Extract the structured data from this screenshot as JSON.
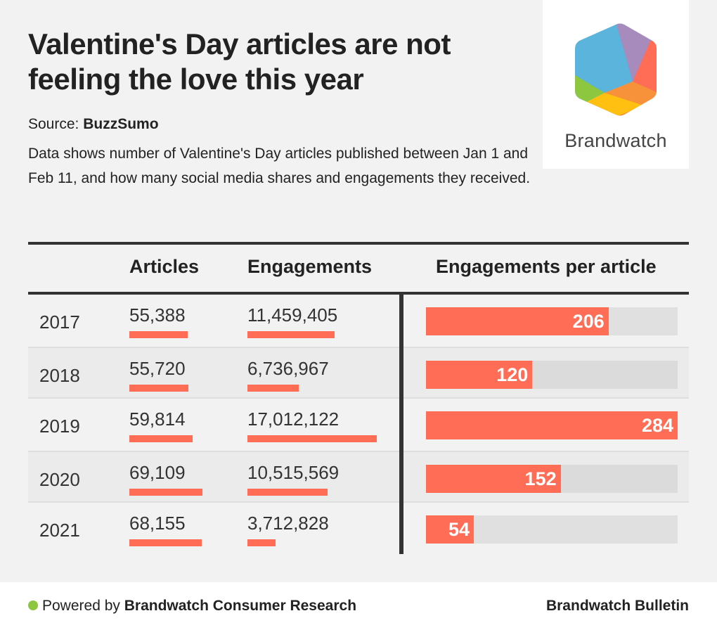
{
  "header": {
    "title": "Valentine's Day articles are not feeling the love this year",
    "source_label": "Source:",
    "source_name": "BuzzSumo",
    "description": "Data shows number of Valentine's Day articles published between Jan 1 and Feb 11, and how many social media shares and engagements they received."
  },
  "logo": {
    "name": "brandwatch-logo",
    "wordmark": "Brandwatch",
    "colors": [
      "#5ab4dc",
      "#a78bbd",
      "#ff6d56",
      "#f7923a",
      "#ffc012",
      "#8dc63f"
    ]
  },
  "colors": {
    "accent": "#ff6d56",
    "track": "#e0e0e0",
    "rule": "#333333",
    "background": "#f2f2f2"
  },
  "chart_data": {
    "type": "table",
    "title": "Valentine's Day articles are not feeling the love this year",
    "columns": [
      "",
      "Articles",
      "Engagements",
      "Engagements per article"
    ],
    "rows": [
      {
        "year": "2017",
        "articles": 55388,
        "articles_label": "55,388",
        "engagements": 11459405,
        "engagements_label": "11,459,405",
        "per_article": 206
      },
      {
        "year": "2018",
        "articles": 55720,
        "articles_label": "55,720",
        "engagements": 6736967,
        "engagements_label": "6,736,967",
        "per_article": 120
      },
      {
        "year": "2019",
        "articles": 59814,
        "articles_label": "59,814",
        "engagements": 17012122,
        "engagements_label": "17,012,122",
        "per_article": 284
      },
      {
        "year": "2020",
        "articles": 69109,
        "articles_label": "69,109",
        "engagements": 10515569,
        "engagements_label": "10,515,569",
        "per_article": 152
      },
      {
        "year": "2021",
        "articles": 68155,
        "articles_label": "68,155",
        "engagements": 3712828,
        "engagements_label": "3,712,828",
        "per_article": 54
      }
    ],
    "per_article_max": 284
  },
  "footer": {
    "powered_prefix": "Powered by",
    "powered_name": "Brandwatch Consumer Research",
    "publication": "Brandwatch Bulletin"
  }
}
